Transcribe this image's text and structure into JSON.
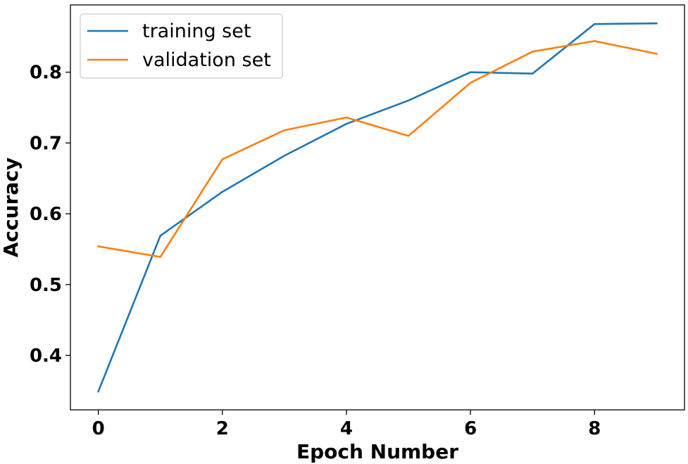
{
  "chart_data": {
    "type": "line",
    "title": "",
    "xlabel": "Epoch Number",
    "ylabel": "Accuracy",
    "x": [
      0,
      1,
      2,
      3,
      4,
      5,
      6,
      7,
      8,
      9
    ],
    "xlim": [
      -0.45,
      9.45
    ],
    "ylim": [
      0.323,
      0.895
    ],
    "x_ticks": [
      0,
      2,
      4,
      6,
      8
    ],
    "x_tick_labels": [
      "0",
      "2",
      "4",
      "6",
      "8"
    ],
    "y_ticks": [
      0.4,
      0.5,
      0.6,
      0.7,
      0.8
    ],
    "y_tick_labels": [
      "0.4",
      "0.5",
      "0.6",
      "0.7",
      "0.8"
    ],
    "grid": false,
    "legend_position": "top-left",
    "series": [
      {
        "name": "training set",
        "color": "#1f77b4",
        "values": [
          0.349,
          0.569,
          0.631,
          0.682,
          0.727,
          0.76,
          0.8,
          0.798,
          0.868,
          0.869
        ]
      },
      {
        "name": "validation set",
        "color": "#ff7f0e",
        "values": [
          0.554,
          0.539,
          0.677,
          0.718,
          0.736,
          0.71,
          0.785,
          0.829,
          0.844,
          0.826
        ]
      }
    ]
  }
}
